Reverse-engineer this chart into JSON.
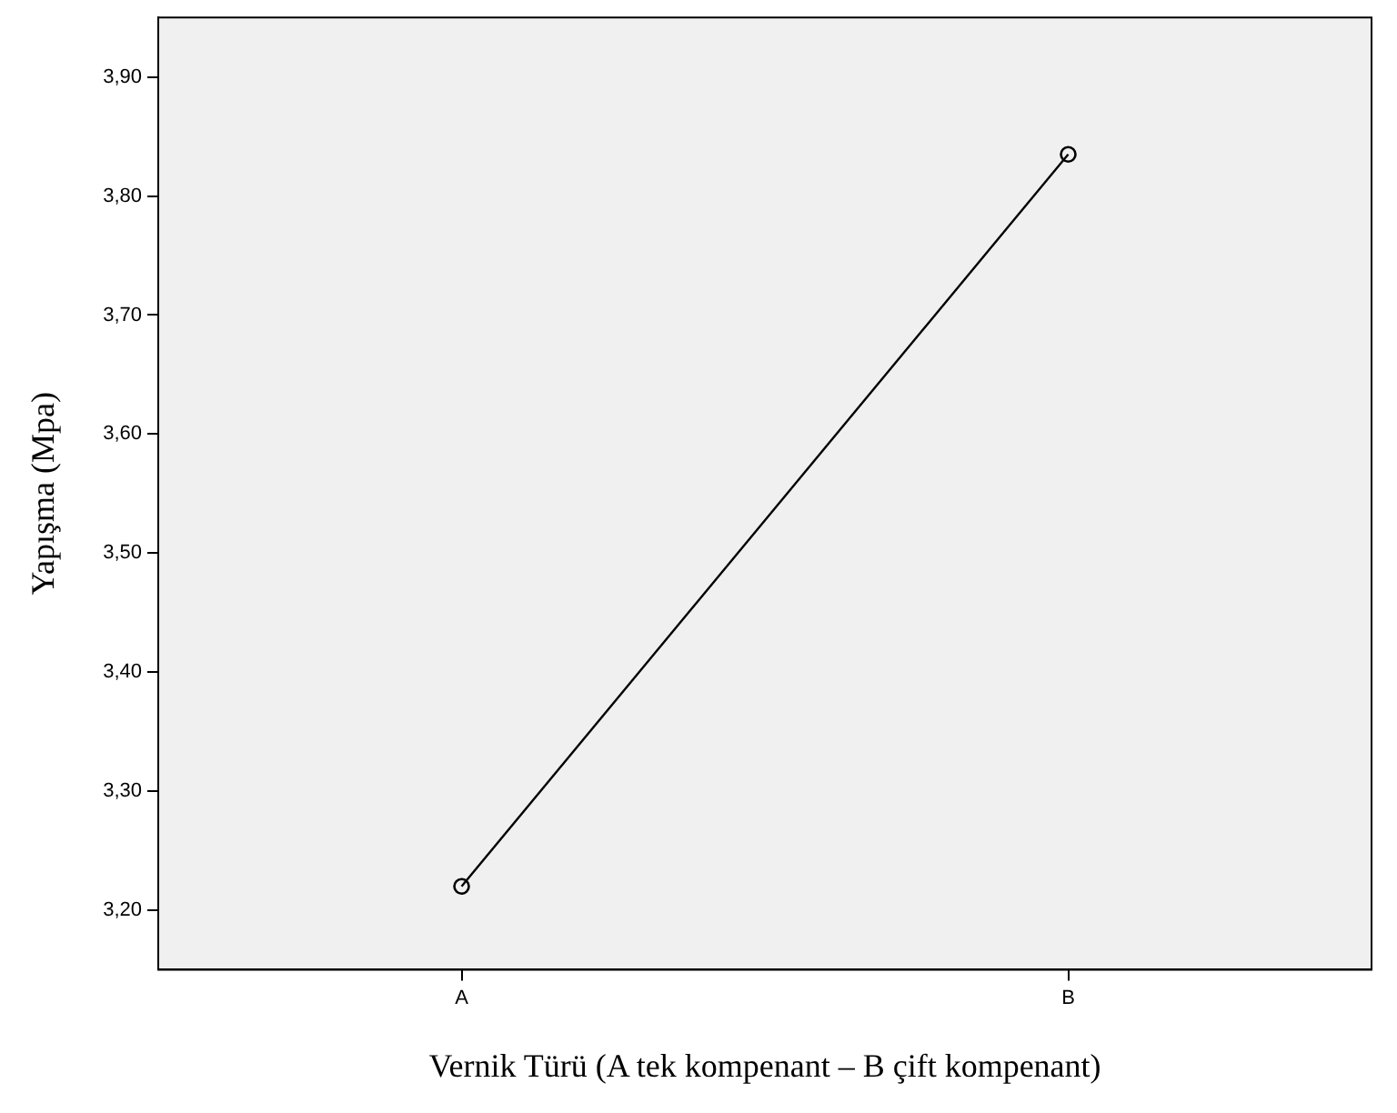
{
  "chart_data": {
    "type": "line",
    "xlabel": "Vernik Türü (A tek kompenant – B çift kompenant)",
    "ylabel": "Yapışma (Mpa)",
    "categories": [
      "A",
      "B"
    ],
    "series": [
      {
        "color": "#000000",
        "values": [
          3.22,
          3.835
        ]
      }
    ],
    "ylim": [
      3.15,
      3.95
    ],
    "yticks": [
      {
        "value": 3.2,
        "label": "3,20"
      },
      {
        "value": 3.3,
        "label": "3,30"
      },
      {
        "value": 3.4,
        "label": "3,40"
      },
      {
        "value": 3.5,
        "label": "3,50"
      },
      {
        "value": 3.6,
        "label": "3,60"
      },
      {
        "value": 3.7,
        "label": "3,70"
      },
      {
        "value": 3.8,
        "label": "3,80"
      },
      {
        "value": 3.9,
        "label": "3,90"
      }
    ],
    "grid": false,
    "legend": false,
    "marker": "circle",
    "line_style": "solid"
  }
}
